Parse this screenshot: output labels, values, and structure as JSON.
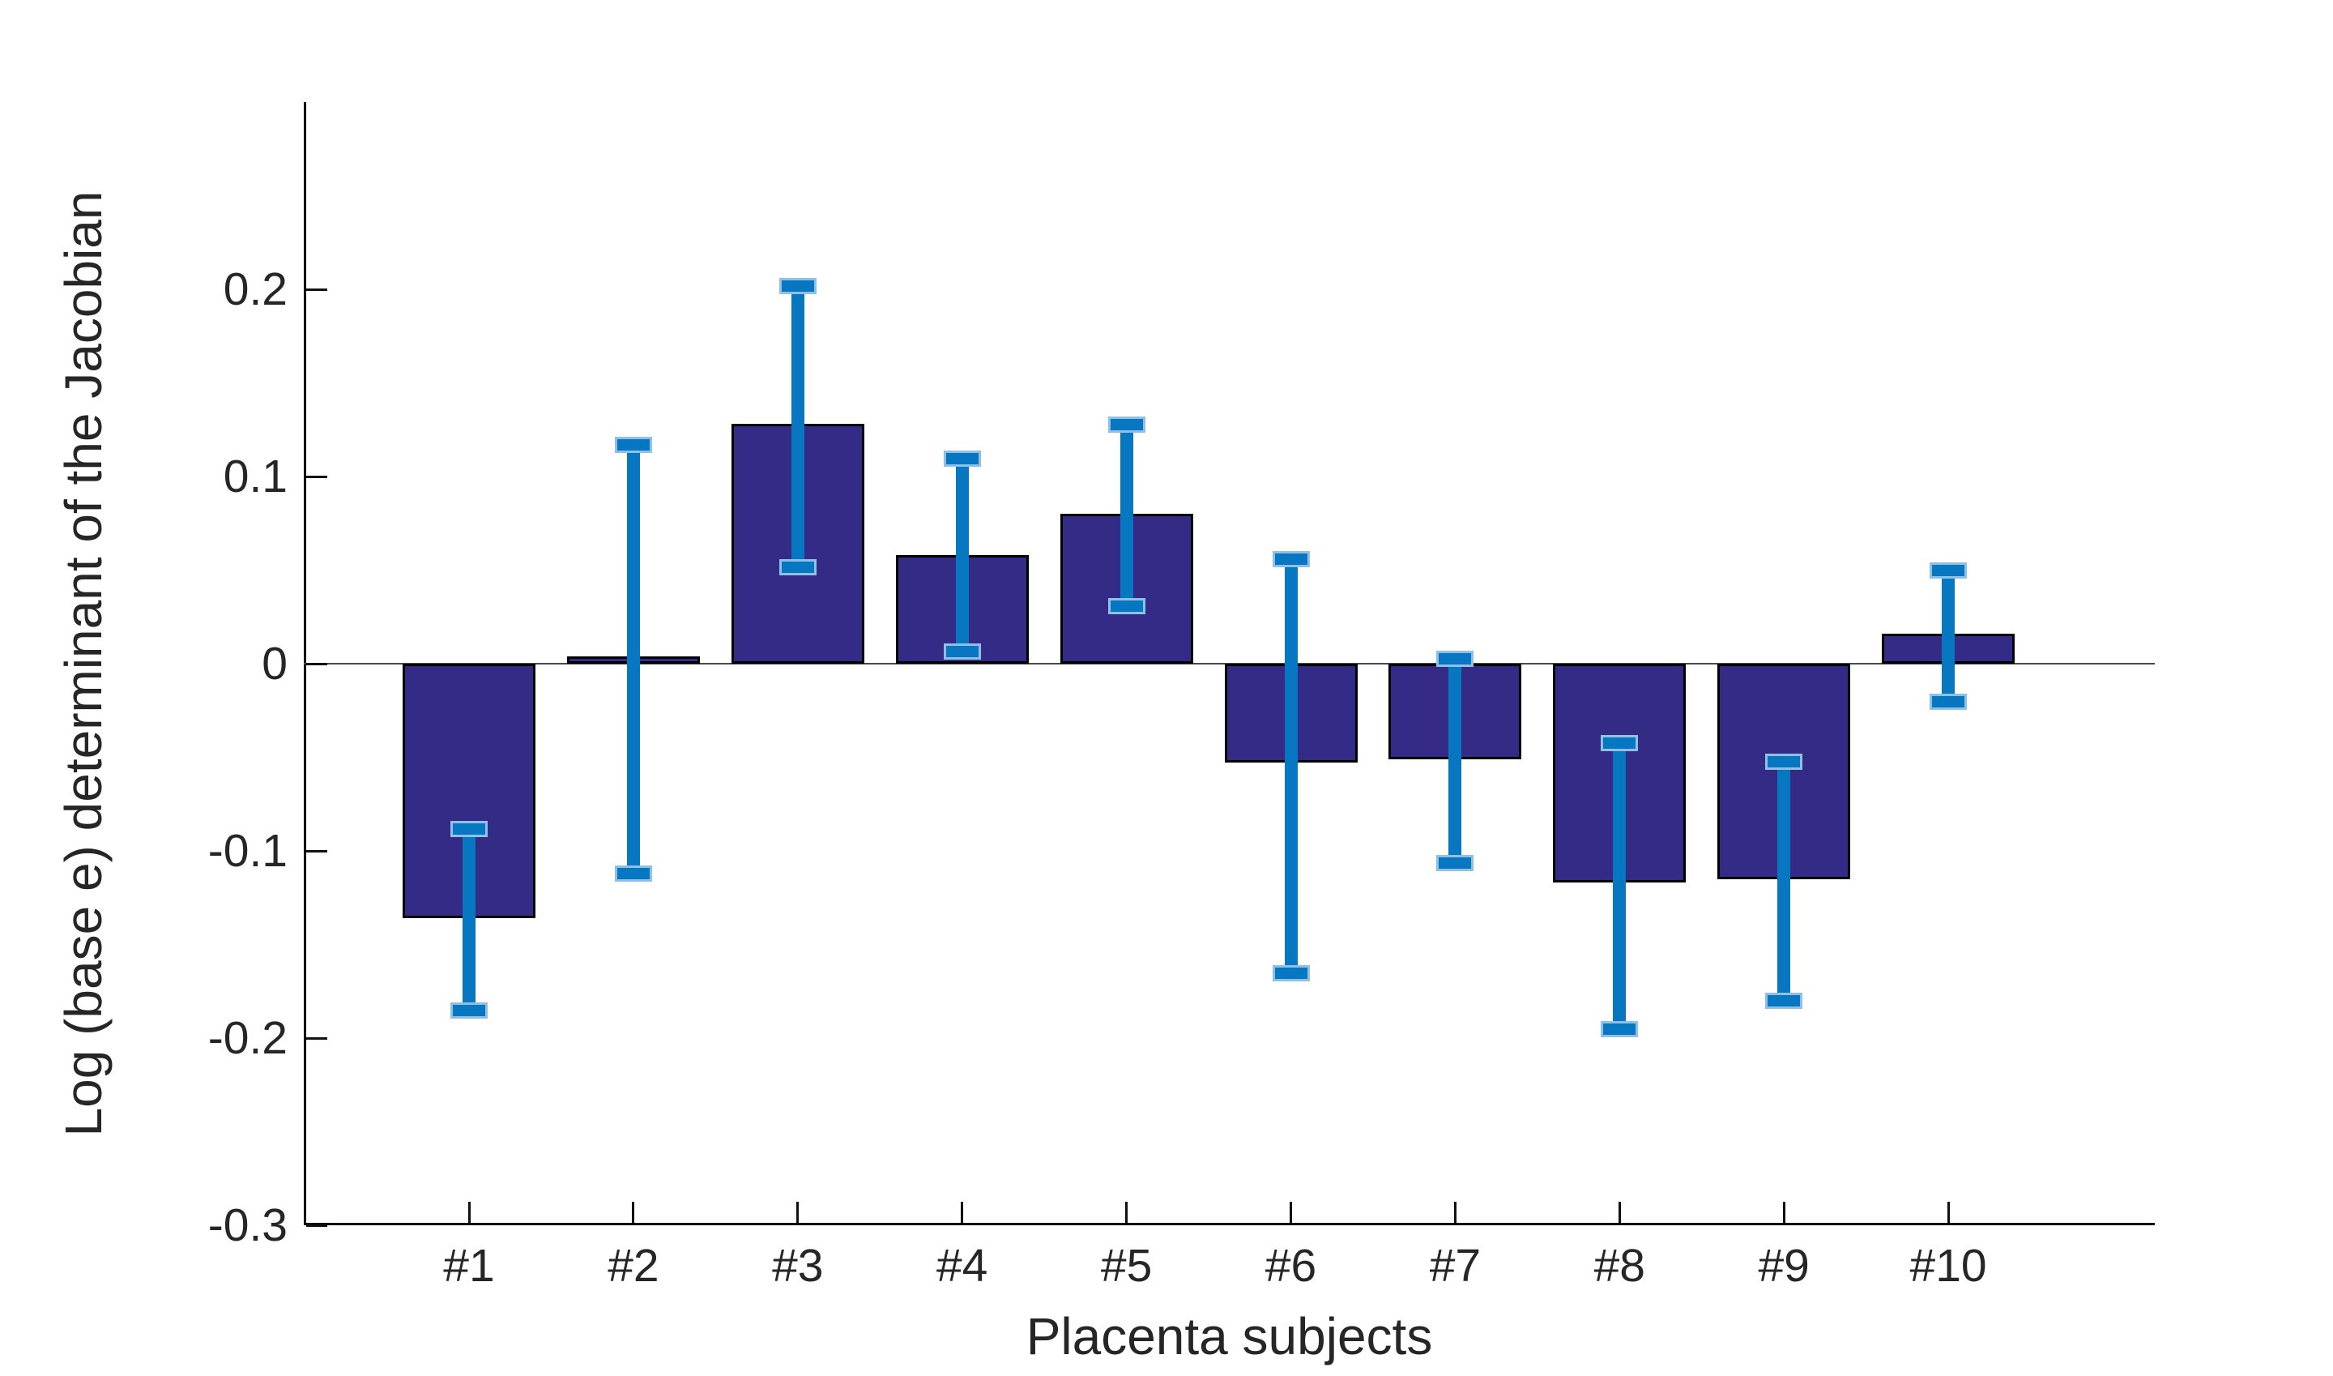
{
  "figure": {
    "background": "#ffffff"
  },
  "chart_data": {
    "type": "bar",
    "title": "",
    "xlabel": "Placenta subjects",
    "ylabel": "Log (base e) determinant of the Jacobian",
    "categories": [
      "#1",
      "#2",
      "#3",
      "#4",
      "#5",
      "#6",
      "#7",
      "#8",
      "#9",
      "#10"
    ],
    "values": [
      -0.136,
      0.004,
      0.128,
      0.058,
      0.08,
      -0.053,
      -0.051,
      -0.117,
      -0.115,
      0.016
    ],
    "error_low": [
      -0.184,
      -0.111,
      0.053,
      0.008,
      0.032,
      -0.164,
      -0.105,
      -0.194,
      -0.179,
      -0.019
    ],
    "error_high": [
      -0.087,
      0.118,
      0.203,
      0.111,
      0.129,
      0.057,
      0.004,
      -0.041,
      -0.051,
      0.051
    ],
    "ylim": [
      -0.3,
      0.3
    ],
    "yticks": [
      0.2,
      0.1,
      0,
      -0.1,
      -0.2,
      -0.3
    ],
    "ytick_labels": [
      "0.2",
      "0.1",
      "0",
      "-0.1",
      "-0.2",
      "-0.3"
    ],
    "grid": false,
    "legend": null,
    "bar_color": "#342B87",
    "bar_edge_color": "#000000",
    "error_color": "#0877C1",
    "error_cap_edge_color": "#90C0E6",
    "axis_color": "#000000",
    "tick_label_color": "#262626"
  }
}
